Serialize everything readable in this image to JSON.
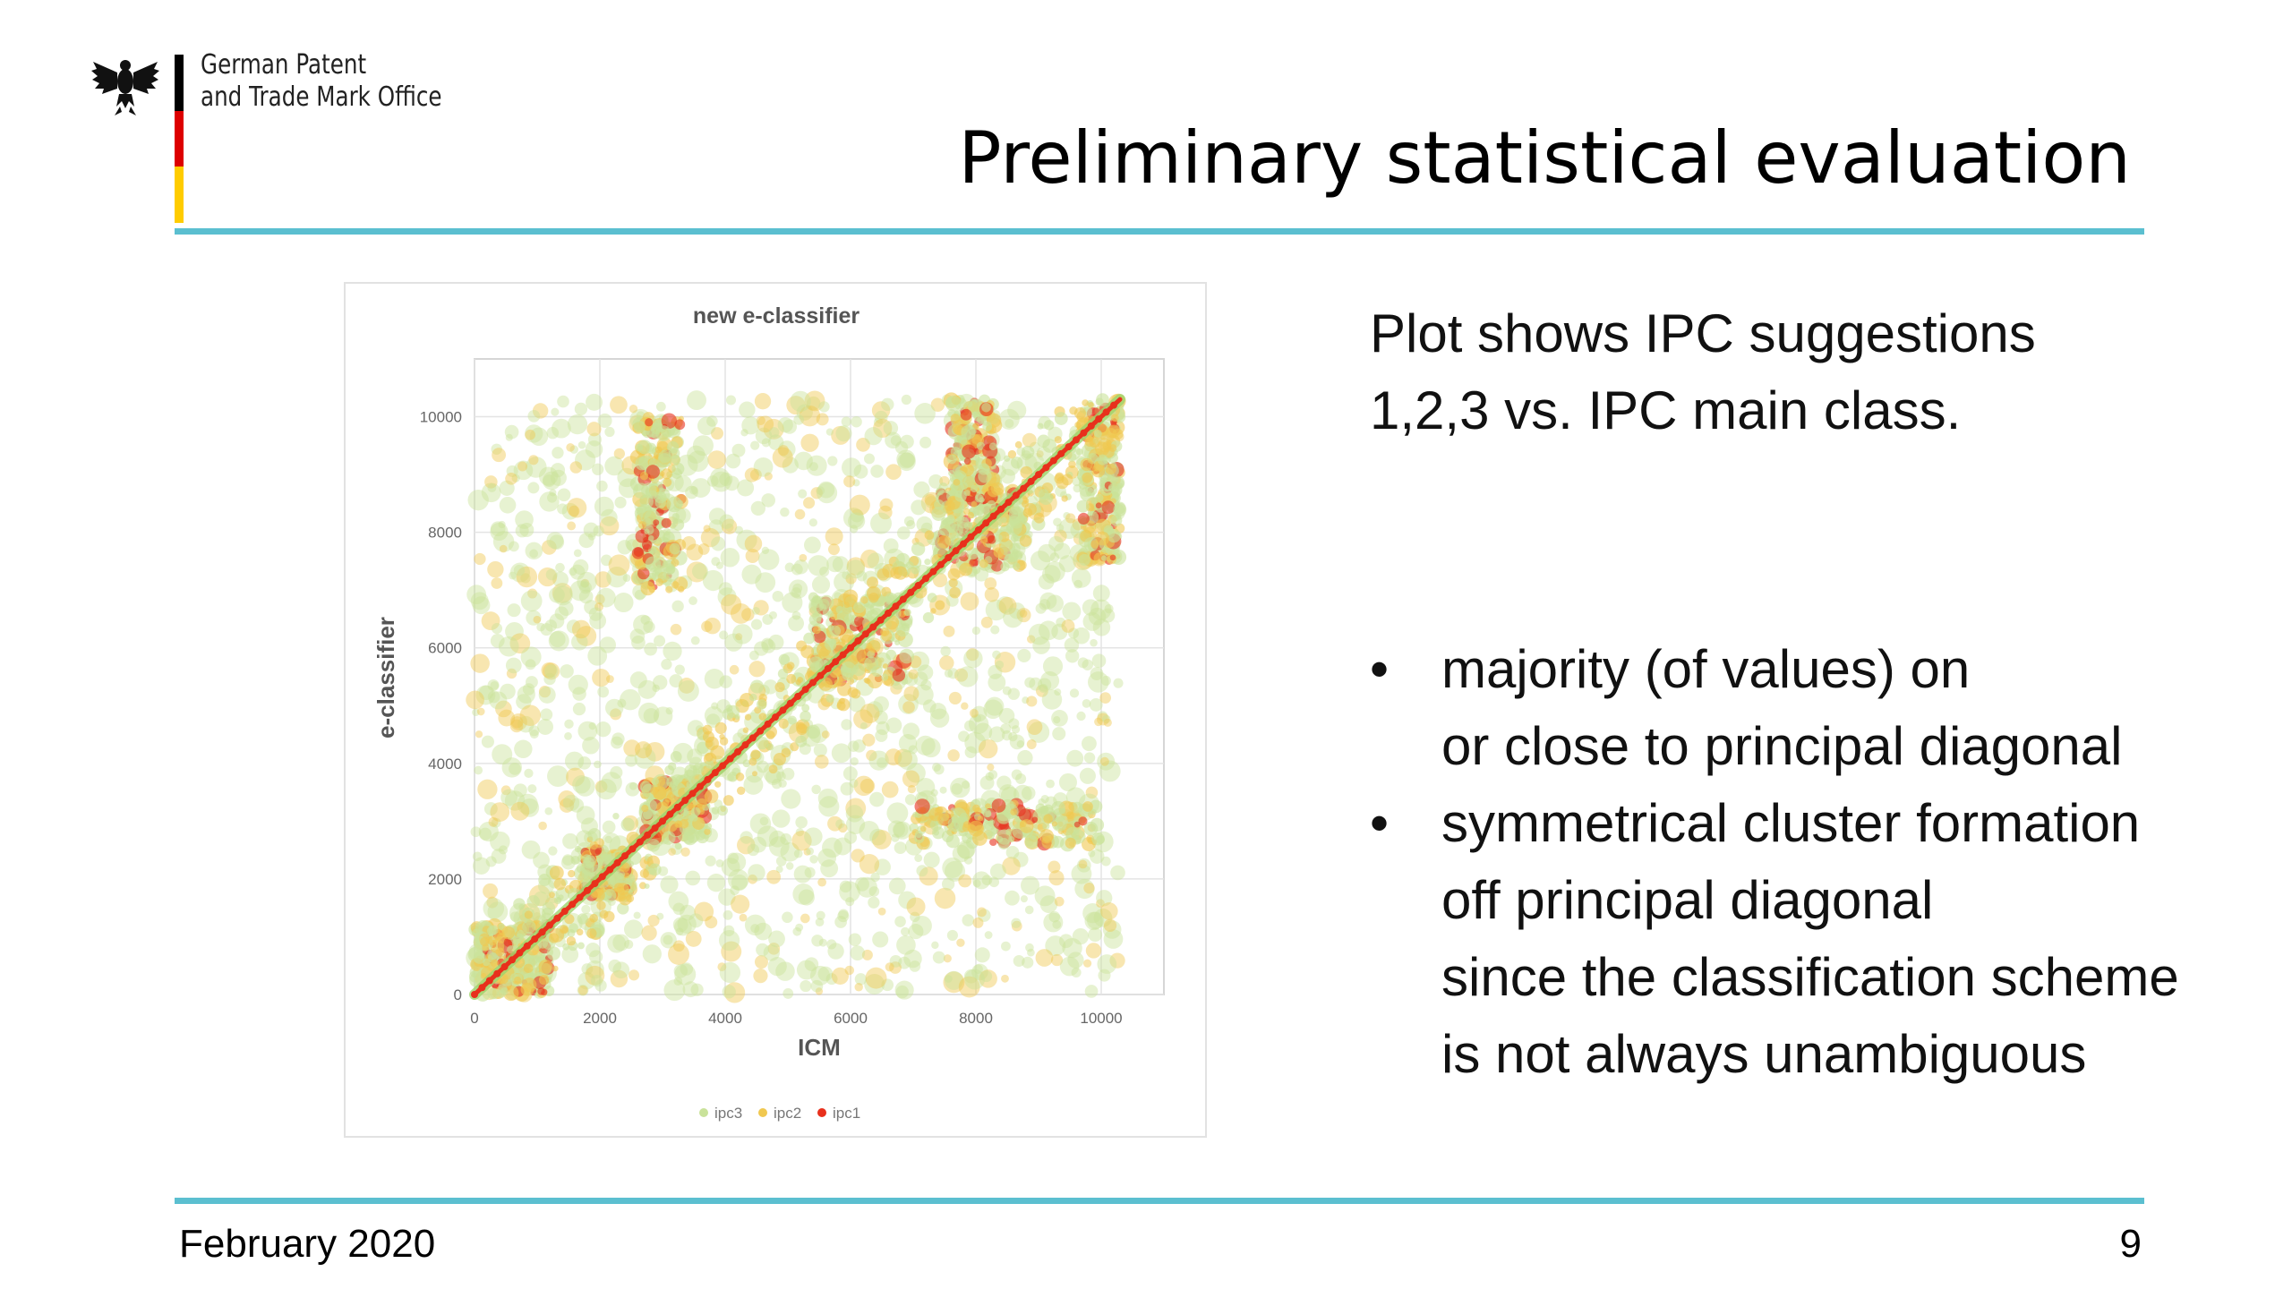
{
  "header": {
    "org_line1": "German Patent",
    "org_line2": "and Trade Mark Office",
    "title": "Preliminary statistical evaluation"
  },
  "colors": {
    "rule": "#5bbfd0",
    "flag_black": "#000000",
    "flag_red": "#dd0000",
    "flag_gold": "#ffcc00",
    "ipc3": "#c9e29a",
    "ipc2": "#f0c850",
    "ipc1": "#e8301c"
  },
  "text": {
    "intro_line1": "Plot shows IPC suggestions",
    "intro_line2": "1,2,3 vs. IPC main class.",
    "bullets": [
      {
        "lines": [
          "majority (of values) on",
          "or close to principal diagonal"
        ]
      },
      {
        "lines": [
          "symmetrical cluster formation",
          "off principal diagonal",
          "since the classification scheme",
          "is not always unambiguous"
        ]
      }
    ],
    "bullet_symbol": "•"
  },
  "footer": {
    "date": "February 2020",
    "page": "9"
  },
  "chart_data": {
    "type": "scatter",
    "title": "new e-classifier",
    "xlabel": "ICM",
    "ylabel": "e-classifier",
    "xlim": [
      0,
      11000
    ],
    "ylim": [
      0,
      11000
    ],
    "xticks": [
      0,
      2000,
      4000,
      6000,
      8000,
      10000
    ],
    "yticks": [
      0,
      2000,
      4000,
      6000,
      8000,
      10000
    ],
    "grid": true,
    "legend_position": "bottom",
    "series": [
      {
        "name": "ipc3",
        "color": "#c9e29a"
      },
      {
        "name": "ipc2",
        "color": "#f0c850"
      },
      {
        "name": "ipc1",
        "color": "#e8301c"
      }
    ],
    "diagonal": {
      "from": [
        0,
        0
      ],
      "to": [
        10300,
        10300
      ]
    },
    "clusters": [
      {
        "x": [
          0,
          1200
        ],
        "y": [
          0,
          1200
        ]
      },
      {
        "x": [
          1700,
          2500
        ],
        "y": [
          1700,
          2500
        ]
      },
      {
        "x": [
          2700,
          3700
        ],
        "y": [
          2700,
          3700
        ]
      },
      {
        "x": [
          5400,
          6900
        ],
        "y": [
          5400,
          6900
        ]
      },
      {
        "x": [
          7400,
          8800
        ],
        "y": [
          7400,
          8800
        ]
      },
      {
        "x": [
          2600,
          3300
        ],
        "y": [
          7000,
          10000
        ]
      },
      {
        "x": [
          7000,
          10000
        ],
        "y": [
          2600,
          3300
        ]
      },
      {
        "x": [
          7600,
          8300
        ],
        "y": [
          8500,
          10300
        ]
      },
      {
        "x": [
          9700,
          10300
        ],
        "y": [
          7500,
          10300
        ]
      }
    ]
  }
}
